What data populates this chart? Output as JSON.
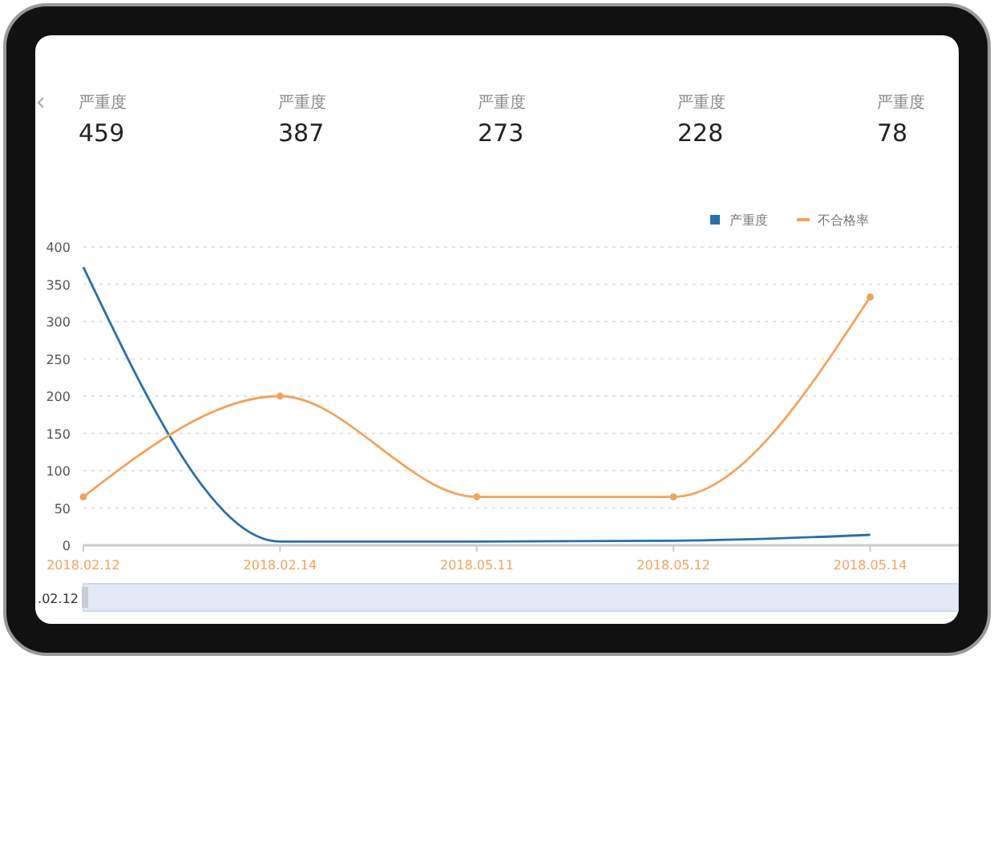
{
  "chart_data": [
    {
      "type": "other",
      "annotations": [
        "严重度",
        "459",
        "严重度",
        "387",
        "严重度",
        "273",
        "严重度",
        "228",
        "严重度",
        "78"
      ]
    },
    {
      "type": "line",
      "categories": [
        "2018.02.12",
        "2018.02.14",
        "2018.05.11",
        "2018.05.12",
        "2018.05.14"
      ],
      "series": [
        {
          "name": "产重度",
          "color": "#2a6fa8",
          "values": [
            373,
            5,
            5,
            6,
            14
          ],
          "marker": "none"
        },
        {
          "name": "不合格率",
          "color": "#f2a35e",
          "values": [
            65,
            200,
            65,
            65,
            333
          ],
          "marker": "circle"
        }
      ],
      "ylim": [
        0,
        400
      ],
      "yticks": [
        0,
        50,
        100,
        150,
        200,
        250,
        300,
        350,
        400
      ],
      "grid": "y",
      "legend": "top right",
      "line_style": "solid",
      "annotations": [
        ".02.12"
      ]
    }
  ]
}
